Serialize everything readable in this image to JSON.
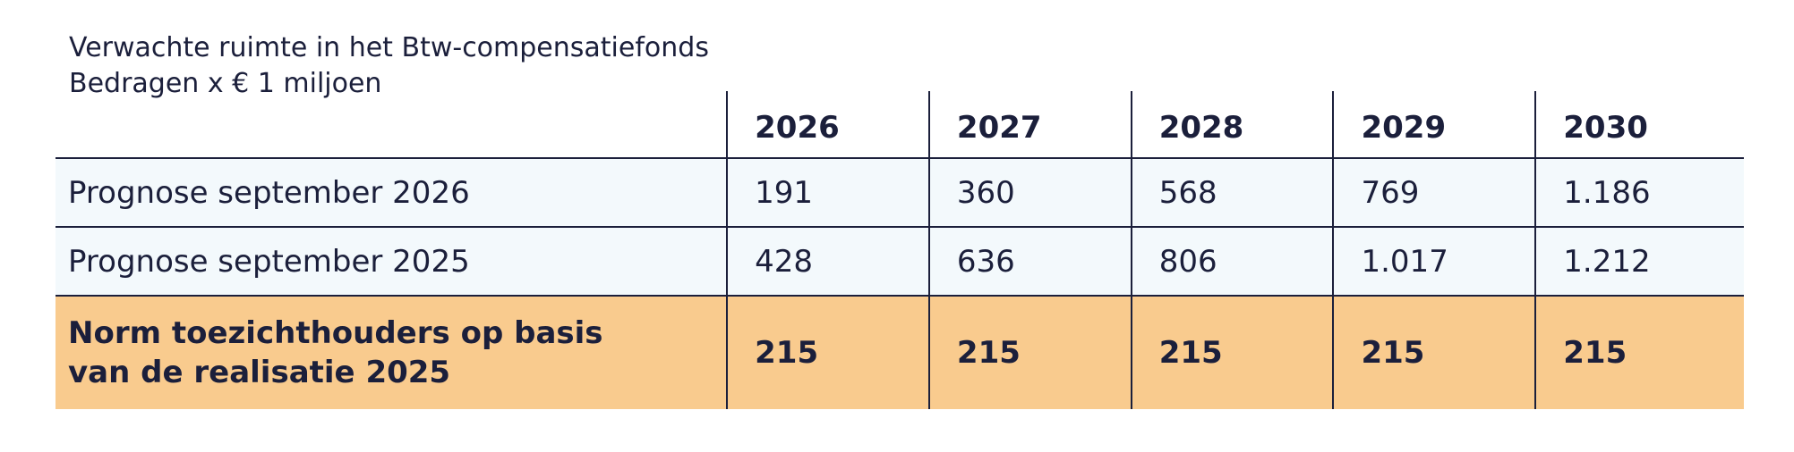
{
  "title": "Verwachte ruimte in het Btw-compensatiefonds",
  "subtitle": "Bedragen x € 1 miljoen",
  "colors": {
    "text": "#1b1f3b",
    "row_bg": "#f3f9fc",
    "highlight_bg": "#f9cb8e",
    "border": "#1b1f3b"
  },
  "chart_data": {
    "type": "table",
    "title": "Verwachte ruimte in het Btw-compensatiefonds",
    "subtitle": "Bedragen x € 1 miljoen",
    "columns": [
      "2026",
      "2027",
      "2028",
      "2029",
      "2030"
    ],
    "rows": [
      {
        "label": "Prognose september 2026",
        "values": [
          "191",
          "360",
          "568",
          "769",
          "1.186"
        ]
      },
      {
        "label": "Prognose september 2025",
        "values": [
          "428",
          "636",
          "806",
          "1.017",
          "1.212"
        ]
      },
      {
        "label_lines": [
          "Norm toezichthouders op basis",
          "van de realisatie 2025"
        ],
        "values": [
          "215",
          "215",
          "215",
          "215",
          "215"
        ]
      }
    ]
  }
}
